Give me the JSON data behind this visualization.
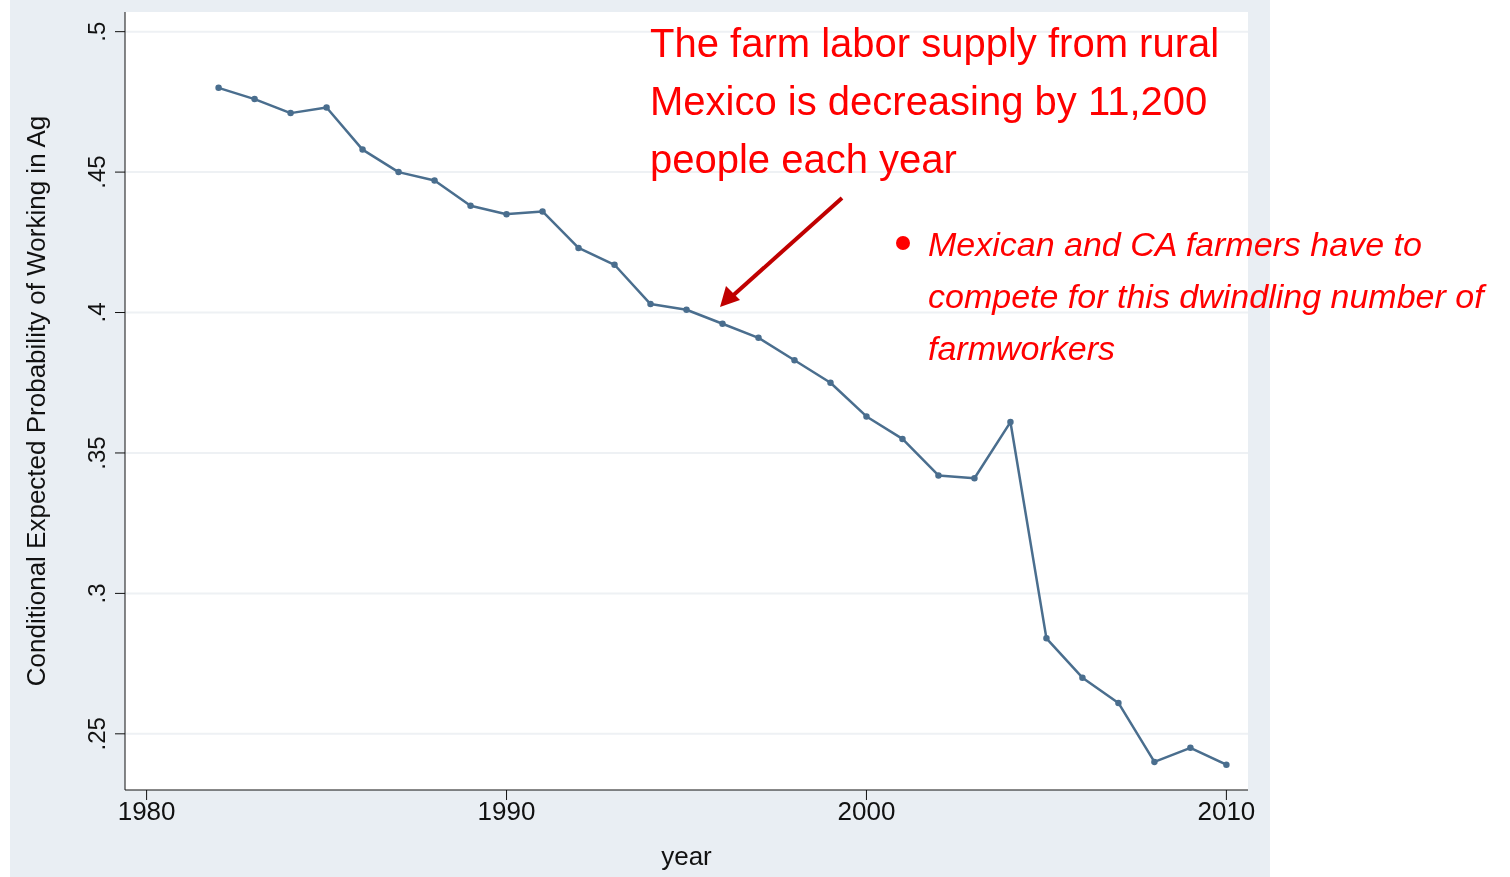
{
  "chart_data": {
    "type": "line",
    "xlabel": "year",
    "ylabel": "Conditional Expected Probability of Working in Ag",
    "x": [
      1982,
      1983,
      1984,
      1985,
      1986,
      1987,
      1988,
      1989,
      1990,
      1991,
      1992,
      1993,
      1994,
      1995,
      1996,
      1997,
      1998,
      1999,
      2000,
      2001,
      2002,
      2003,
      2004,
      2005,
      2006,
      2007,
      2008,
      2009,
      2010
    ],
    "series": [
      {
        "color": "#4a6e8e",
        "values": [
          0.48,
          0.476,
          0.471,
          0.473,
          0.458,
          0.45,
          0.447,
          0.438,
          0.435,
          0.436,
          0.423,
          0.417,
          0.403,
          0.401,
          0.396,
          0.391,
          0.383,
          0.375,
          0.363,
          0.355,
          0.342,
          0.341,
          0.361,
          0.284,
          0.27,
          0.261,
          0.24,
          0.245,
          0.239
        ]
      }
    ],
    "xlim": [
      1979.4,
      2010.6
    ],
    "xticks": [
      1980,
      1990,
      2000,
      2010
    ],
    "ylim": [
      0.23,
      0.507
    ],
    "yticks": [
      {
        "value": 0.25,
        "label": ".25"
      },
      {
        "value": 0.3,
        "label": ".3"
      },
      {
        "value": 0.35,
        "label": ".35"
      },
      {
        "value": 0.4,
        "label": ".4"
      },
      {
        "value": 0.45,
        "label": ".45"
      },
      {
        "value": 0.5,
        "label": ".5"
      }
    ],
    "grid": "y",
    "marker": "circle",
    "line_style": "solid",
    "legend": false,
    "annotations": [
      "The farm labor supply from rural Mexico is decreasing by 11,200 people each year",
      "Mexican and CA farmers have to compete for this dwindling number of farmworkers"
    ]
  }
}
